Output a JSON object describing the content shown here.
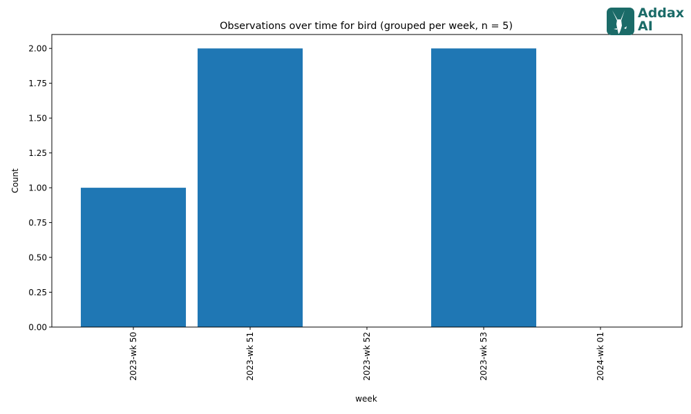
{
  "chart_data": {
    "type": "bar",
    "title": "Observations over time for bird (grouped per week, n = 5)",
    "xlabel": "week",
    "ylabel": "Count",
    "categories": [
      "2023-wk 50",
      "2023-wk 51",
      "2023-wk 52",
      "2023-wk 53",
      "2024-wk 01"
    ],
    "values": [
      1,
      2,
      0,
      2,
      0
    ],
    "ylim": [
      0,
      2.1
    ],
    "yticks": [
      "0.00",
      "0.25",
      "0.50",
      "0.75",
      "1.00",
      "1.25",
      "1.50",
      "1.75",
      "2.00"
    ],
    "bar_color": "#1f77b4",
    "grid": false,
    "legend": "none"
  },
  "logo": {
    "line1": "Addax",
    "line2": "AI",
    "color": "#1b6b68",
    "icon": "addax-antelope-icon"
  }
}
